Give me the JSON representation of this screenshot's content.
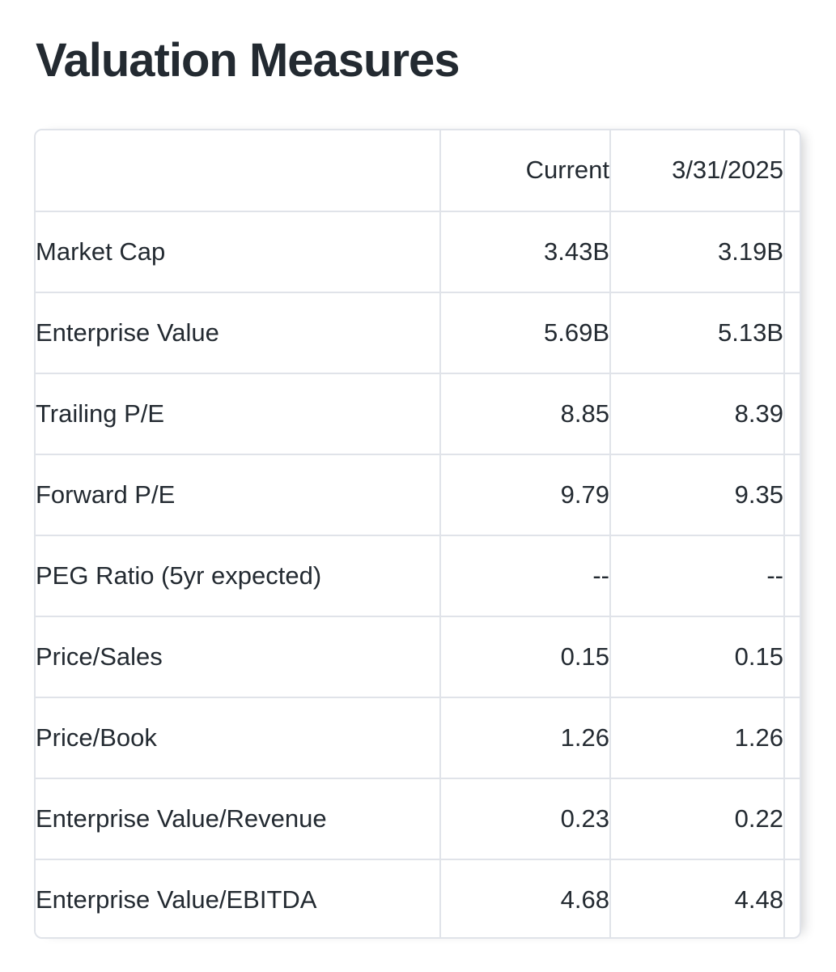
{
  "page": {
    "title": "Valuation Measures"
  },
  "table": {
    "columns": [
      {
        "label": ""
      },
      {
        "label": "Current"
      },
      {
        "label": "3/31/2025"
      }
    ],
    "rows": [
      {
        "label": "Market Cap",
        "current": "3.43B",
        "prior": "3.19B"
      },
      {
        "label": "Enterprise Value",
        "current": "5.69B",
        "prior": "5.13B"
      },
      {
        "label": "Trailing P/E",
        "current": "8.85",
        "prior": "8.39"
      },
      {
        "label": "Forward P/E",
        "current": "9.79",
        "prior": "9.35"
      },
      {
        "label": "PEG Ratio (5yr expected)",
        "current": "--",
        "prior": "--"
      },
      {
        "label": "Price/Sales",
        "current": "0.15",
        "prior": "0.15"
      },
      {
        "label": "Price/Book",
        "current": "1.26",
        "prior": "1.26"
      },
      {
        "label": "Enterprise Value/Revenue",
        "current": "0.23",
        "prior": "0.22"
      },
      {
        "label": "Enterprise Value/EBITDA",
        "current": "4.68",
        "prior": "4.48"
      }
    ]
  },
  "colors": {
    "text": "#232a31",
    "border": "#e0e3e9",
    "background": "#ffffff"
  }
}
